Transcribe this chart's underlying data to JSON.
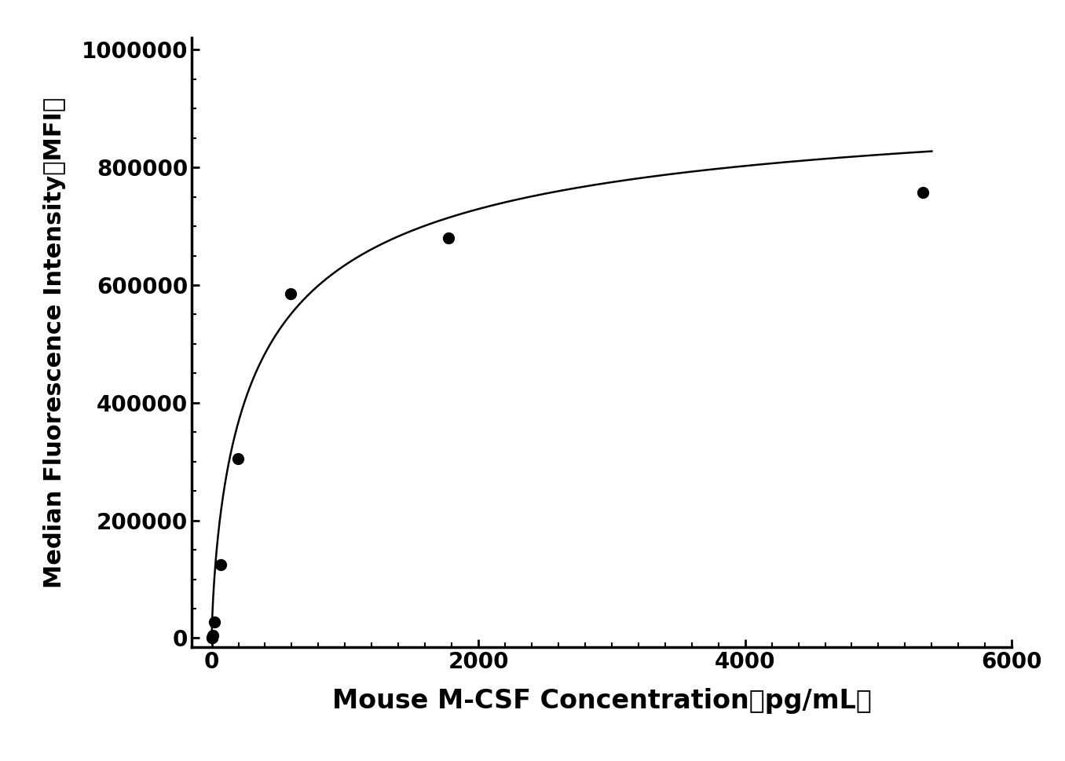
{
  "x_data": [
    0,
    2.44,
    7.32,
    21.97,
    65.9,
    197.7,
    593.1,
    1778,
    5333
  ],
  "y_data": [
    0,
    0,
    5000,
    27000,
    125000,
    305000,
    585000,
    680000,
    757000
  ],
  "xlabel": "Mouse M-CSF Concentration（pg/mL）",
  "ylabel": "Median Fluorescence Intensity（MFI）",
  "xlim": [
    -150,
    5800
  ],
  "ylim": [
    -15000,
    1020000
  ],
  "xticks": [
    0,
    2000,
    4000,
    6000
  ],
  "yticks": [
    0,
    200000,
    400000,
    600000,
    800000,
    1000000
  ],
  "background_color": "#ffffff",
  "line_color": "#000000",
  "dot_color": "#000000",
  "dot_size": 100,
  "line_width": 1.8,
  "xlabel_fontsize": 24,
  "ylabel_fontsize": 22,
  "tick_fontsize": 20,
  "font_weight": "bold",
  "hill_Bmax": 950000,
  "hill_Kd": 380,
  "hill_n": 0.72
}
